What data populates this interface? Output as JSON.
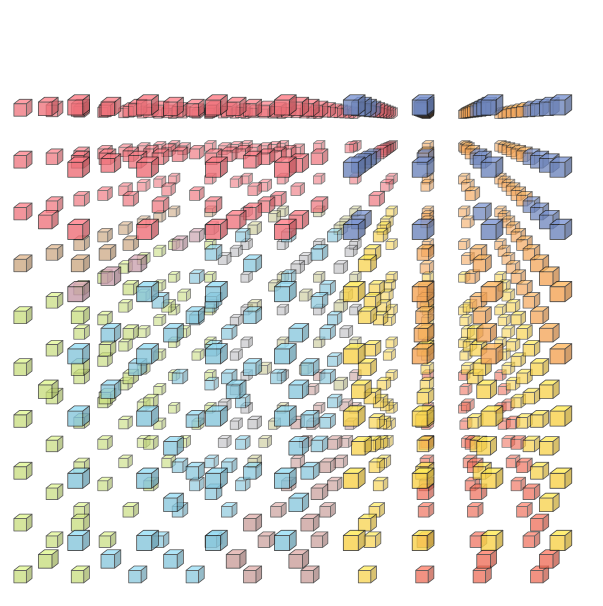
{
  "scene": {
    "background": "#ffffff",
    "outline_color": "#1a1a1a",
    "palette": {
      "red": "#ee6f78",
      "blue": "#6f86bd",
      "orange": "#f4a456",
      "olive": "#c4c48c",
      "mauve": "#c69aa8",
      "peach": "#d99a6a",
      "lime": "#c6dc7a",
      "sky": "#86c6dc",
      "gray": "#b8b8bc",
      "yellow": "#f8d24a",
      "coral": "#ee6a55",
      "rosybrown": "#c89a96",
      "tan": "#c9a27a"
    }
  }
}
